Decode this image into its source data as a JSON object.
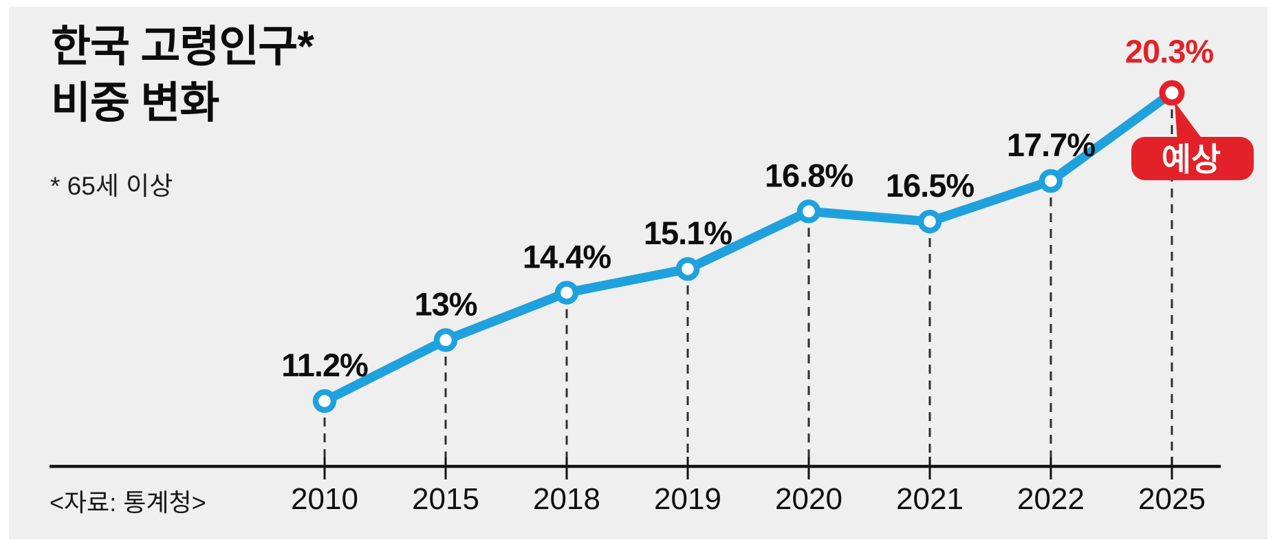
{
  "header": {
    "title_line1": "한국 고령인구*",
    "title_line2": "비중 변화",
    "subtitle": "* 65세 이상",
    "source": "<자료: 통계청>"
  },
  "colors": {
    "panel_bg": "#efefef",
    "line_blue": "#1fa1dd",
    "accent_red": "#e32128",
    "text_black": "#0d0d0d",
    "leader_dash": "#2e2e2e",
    "axis_black": "#121212",
    "badge_text": "#ffffff"
  },
  "chart_data": {
    "type": "line",
    "title": "한국 고령인구* 비중 변화",
    "footnote": "* 65세 이상",
    "source": "<자료: 통계청>",
    "categories": [
      "2010",
      "2015",
      "2018",
      "2019",
      "2020",
      "2021",
      "2022",
      "2025"
    ],
    "series": [
      {
        "name": "고령인구 비중",
        "values": [
          11.2,
          13,
          14.4,
          15.1,
          16.8,
          16.5,
          17.7,
          20.3
        ]
      }
    ],
    "point_labels": [
      "11.2%",
      "13%",
      "14.4%",
      "15.1%",
      "16.8%",
      "16.5%",
      "17.7%",
      "20.3%"
    ],
    "forecast_index": 7,
    "forecast_label": "예상",
    "ylim": [
      9.5,
      22
    ],
    "grid": false,
    "legend": false,
    "annotations": "2025 value is a forecast, marked red with 예상 badge"
  }
}
